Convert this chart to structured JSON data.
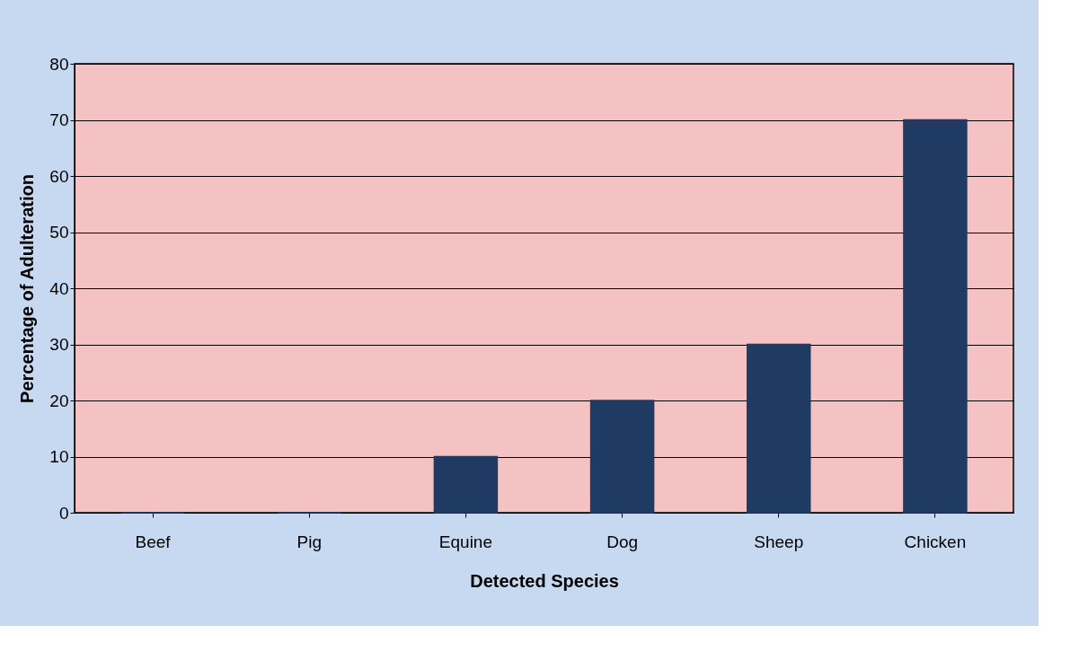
{
  "chart_data": {
    "type": "bar",
    "xlabel": "Detected Species",
    "ylabel": "Percentage of Adulteration",
    "categories": [
      "Beef",
      "Pig",
      "Equine",
      "Dog",
      "Sheep",
      "Chicken"
    ],
    "values": [
      0,
      0,
      10,
      20,
      30,
      70
    ],
    "color": "#1f3b63",
    "ylim": [
      0,
      80
    ],
    "yticks": [
      0,
      10,
      20,
      30,
      40,
      50,
      60,
      70,
      80
    ],
    "grid": "y"
  }
}
